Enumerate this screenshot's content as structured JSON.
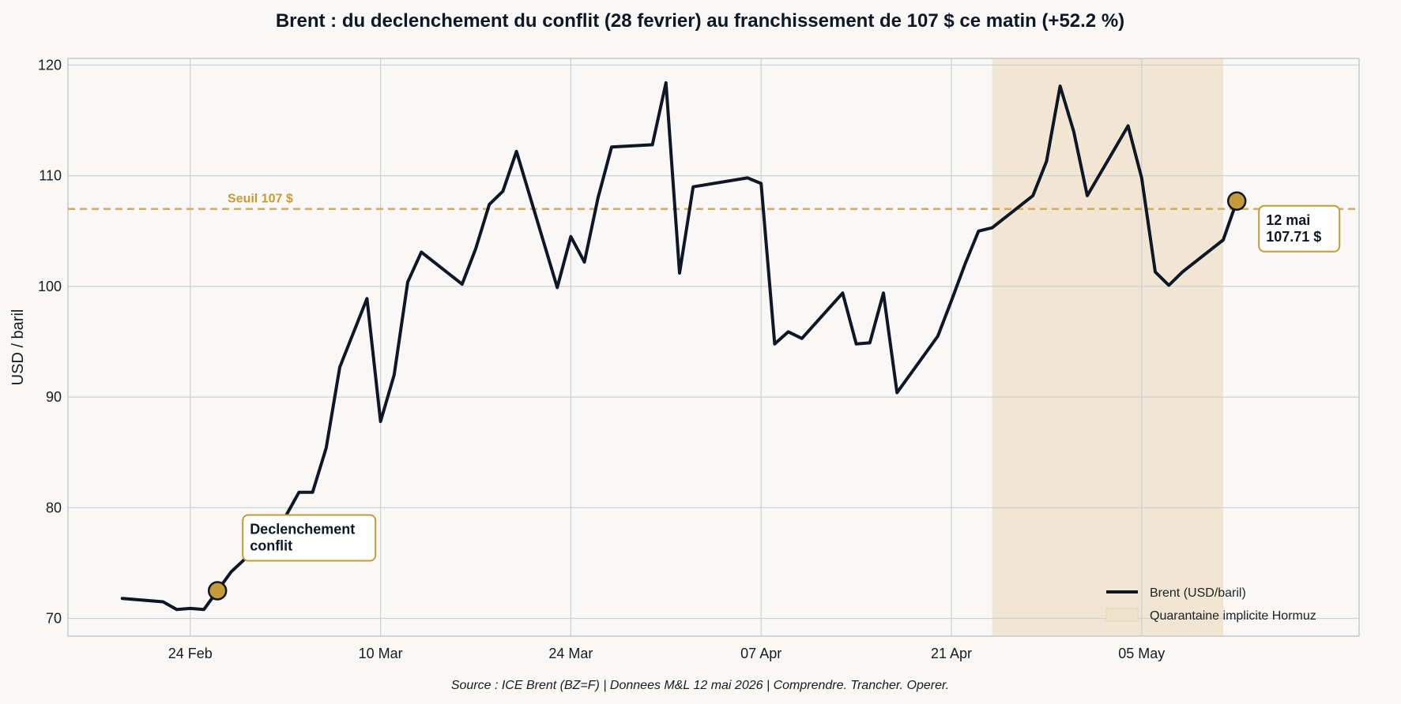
{
  "chart_data": {
    "type": "line",
    "title": "Brent : du declenchement du conflit (28 fevrier) au franchissement de 107 $ ce matin (+52.2 %)",
    "ylabel": "USD / baril",
    "xlabel": "",
    "ylim": [
      68.4,
      120.6
    ],
    "xlim": [
      "2026-02-15",
      "2026-05-21"
    ],
    "grid": true,
    "legend_position": "bottom-right",
    "yticks": [
      70,
      80,
      90,
      100,
      110,
      120
    ],
    "xticks": [
      {
        "date": "2026-02-24",
        "label": "24 Feb"
      },
      {
        "date": "2026-03-10",
        "label": "10 Mar"
      },
      {
        "date": "2026-03-24",
        "label": "24 Mar"
      },
      {
        "date": "2026-04-07",
        "label": "07 Apr"
      },
      {
        "date": "2026-04-21",
        "label": "21 Apr"
      },
      {
        "date": "2026-05-05",
        "label": "05 May"
      }
    ],
    "series": [
      {
        "name": "Brent (USD/baril)",
        "color": "#0d1726",
        "points": [
          [
            "2026-02-19",
            71.8
          ],
          [
            "2026-02-22",
            71.5
          ],
          [
            "2026-02-23",
            70.8
          ],
          [
            "2026-02-24",
            70.9
          ],
          [
            "2026-02-25",
            70.8
          ],
          [
            "2026-02-26",
            72.5
          ],
          [
            "2026-02-27",
            74.2
          ],
          [
            "2026-03-01",
            76.5
          ],
          [
            "2026-03-03",
            79.2
          ],
          [
            "2026-03-04",
            81.4
          ],
          [
            "2026-03-05",
            81.4
          ],
          [
            "2026-03-06",
            85.4
          ],
          [
            "2026-03-07",
            92.7
          ],
          [
            "2026-03-09",
            98.9
          ],
          [
            "2026-03-10",
            87.8
          ],
          [
            "2026-03-11",
            92.0
          ],
          [
            "2026-03-12",
            100.4
          ],
          [
            "2026-03-13",
            103.1
          ],
          [
            "2026-03-16",
            100.2
          ],
          [
            "2026-03-17",
            103.4
          ],
          [
            "2026-03-18",
            107.4
          ],
          [
            "2026-03-19",
            108.6
          ],
          [
            "2026-03-20",
            112.2
          ],
          [
            "2026-03-23",
            99.9
          ],
          [
            "2026-03-24",
            104.5
          ],
          [
            "2026-03-25",
            102.2
          ],
          [
            "2026-03-26",
            108.0
          ],
          [
            "2026-03-27",
            112.6
          ],
          [
            "2026-03-30",
            112.8
          ],
          [
            "2026-03-31",
            118.4
          ],
          [
            "2026-04-01",
            101.2
          ],
          [
            "2026-04-02",
            109.0
          ],
          [
            "2026-04-06",
            109.8
          ],
          [
            "2026-04-07",
            109.3
          ],
          [
            "2026-04-08",
            94.8
          ],
          [
            "2026-04-09",
            95.9
          ],
          [
            "2026-04-10",
            95.3
          ],
          [
            "2026-04-13",
            99.4
          ],
          [
            "2026-04-14",
            94.8
          ],
          [
            "2026-04-15",
            94.9
          ],
          [
            "2026-04-16",
            99.4
          ],
          [
            "2026-04-17",
            90.4
          ],
          [
            "2026-04-20",
            95.5
          ],
          [
            "2026-04-21",
            98.7
          ],
          [
            "2026-04-22",
            102.0
          ],
          [
            "2026-04-23",
            105.0
          ],
          [
            "2026-04-24",
            105.3
          ],
          [
            "2026-04-27",
            108.2
          ],
          [
            "2026-04-28",
            111.3
          ],
          [
            "2026-04-29",
            118.1
          ],
          [
            "2026-04-30",
            114.0
          ],
          [
            "2026-05-01",
            108.2
          ],
          [
            "2026-05-04",
            114.5
          ],
          [
            "2026-05-05",
            109.8
          ],
          [
            "2026-05-06",
            101.3
          ],
          [
            "2026-05-07",
            100.1
          ],
          [
            "2026-05-08",
            101.3
          ],
          [
            "2026-05-11",
            104.2
          ],
          [
            "2026-05-12",
            107.71
          ]
        ]
      }
    ],
    "shaded_region": {
      "name": "Quarantaine implicite Hormuz",
      "start": "2026-04-24",
      "end": "2026-05-11",
      "color": "#efe3cc"
    },
    "threshold": {
      "value": 107,
      "label": "Seuil 107 $",
      "color": "#d4ab5e"
    },
    "annotations": [
      {
        "date": "2026-02-26",
        "value": 72.5,
        "lines": [
          "Declenchement",
          "conflit"
        ]
      },
      {
        "date": "2026-05-12",
        "value": 107.71,
        "lines": [
          "12 mai",
          "107.71 $"
        ]
      }
    ],
    "accent_color": "#c49a3a",
    "source": "Source : ICE Brent (BZ=F) | Donnees M&L 12 mai 2026 | Comprendre. Trancher. Operer."
  }
}
